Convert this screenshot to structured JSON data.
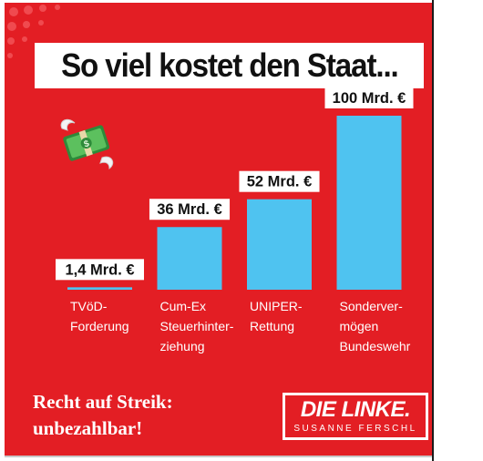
{
  "title": "So viel kostet den Staat...",
  "chart_data": {
    "type": "bar",
    "title": "So viel kostet den Staat...",
    "categories": [
      [
        "TVöD-",
        "Forderung"
      ],
      [
        "Cum-Ex",
        "Steuerhinter-",
        "ziehung"
      ],
      [
        "UNIPER-",
        "Rettung"
      ],
      [
        "Sonderver-",
        "mögen",
        "Bundeswehr"
      ]
    ],
    "values": [
      1.4,
      36,
      52,
      100
    ],
    "data_labels": [
      "1,4 Mrd. €",
      "36 Mrd. €",
      "52 Mrd. €",
      "100 Mrd. €"
    ],
    "unit": "Mrd. €",
    "ylim": [
      0,
      100
    ],
    "grid": false,
    "bar_color": "#4fc3f0",
    "label_box_color": "#ffffff"
  },
  "icons": {
    "money": "flying-money-icon"
  },
  "slogan": {
    "line1": "Recht auf Streik:",
    "line2": "unbezahlbar!"
  },
  "logo": {
    "title": "DIE LINKE.",
    "subtitle": "SUSANNE FERSCHL"
  },
  "colors": {
    "background": "#e31e24",
    "bar": "#4fc3f0",
    "text_on_red": "#ffffff"
  }
}
